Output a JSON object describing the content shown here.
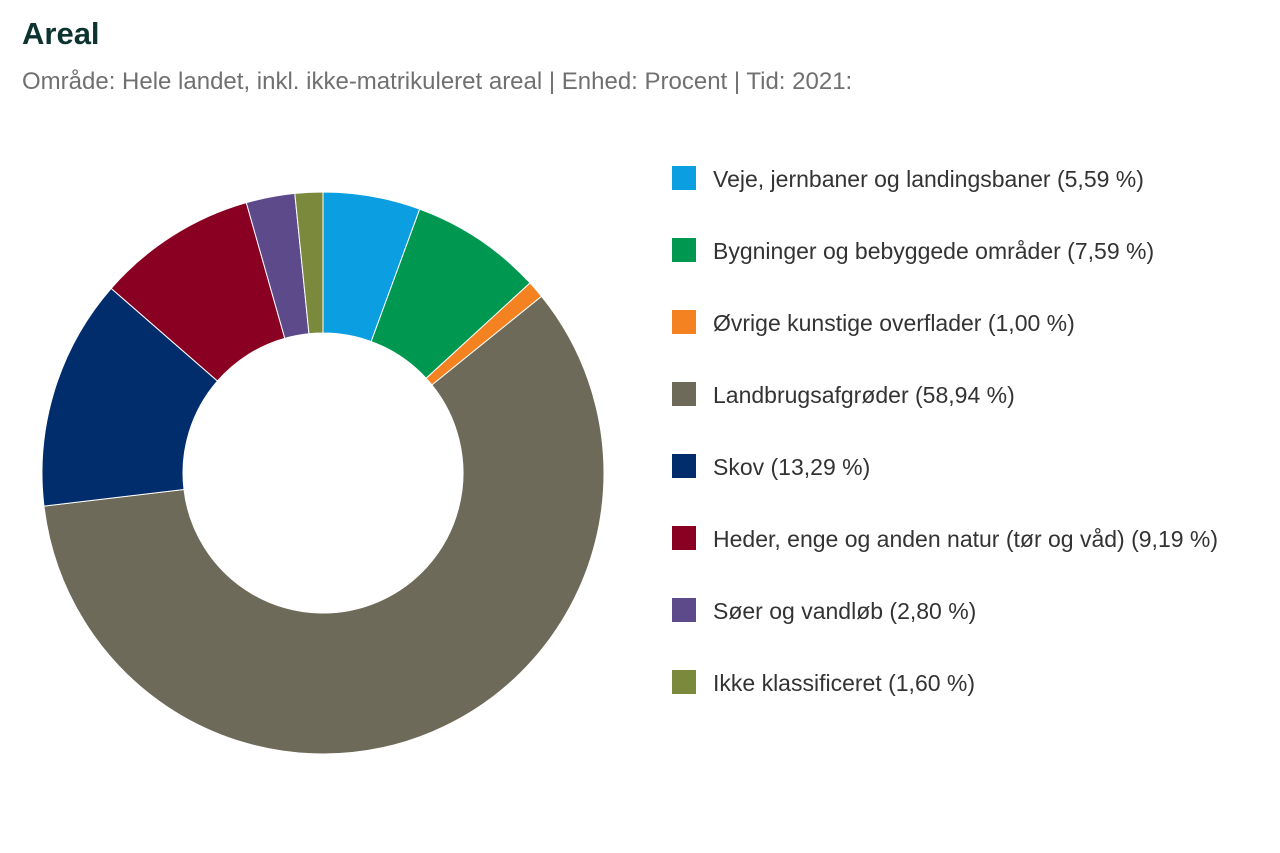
{
  "header": {
    "title": "Areal",
    "subtitle": "Område: Hele landet, inkl. ikke-matrikuleret areal | Enhed: Procent | Tid: 2021:"
  },
  "chart_data": {
    "type": "pie",
    "donut": true,
    "unit": "%",
    "legend_position": "right",
    "categories": [
      "Veje, jernbaner og landingsbaner",
      "Bygninger og bebyggede områder",
      "Øvrige kunstige overflader",
      "Landbrugsafgrøder",
      "Skov",
      "Heder, enge og anden natur (tør og våd)",
      "Søer og vandløb",
      "Ikke klassificeret"
    ],
    "values": [
      5.59,
      7.59,
      1.0,
      58.94,
      13.29,
      9.19,
      2.8,
      1.6
    ],
    "labels": [
      "5,59 %",
      "7,59 %",
      "1,00 %",
      "58,94 %",
      "13,29 %",
      "9,19 %",
      "2,80 %",
      "1,60 %"
    ],
    "colors": [
      "#0b9ee0",
      "#009850",
      "#f58220",
      "#6e6a59",
      "#012d6c",
      "#8a0022",
      "#5c4a8a",
      "#7a893c"
    ]
  }
}
